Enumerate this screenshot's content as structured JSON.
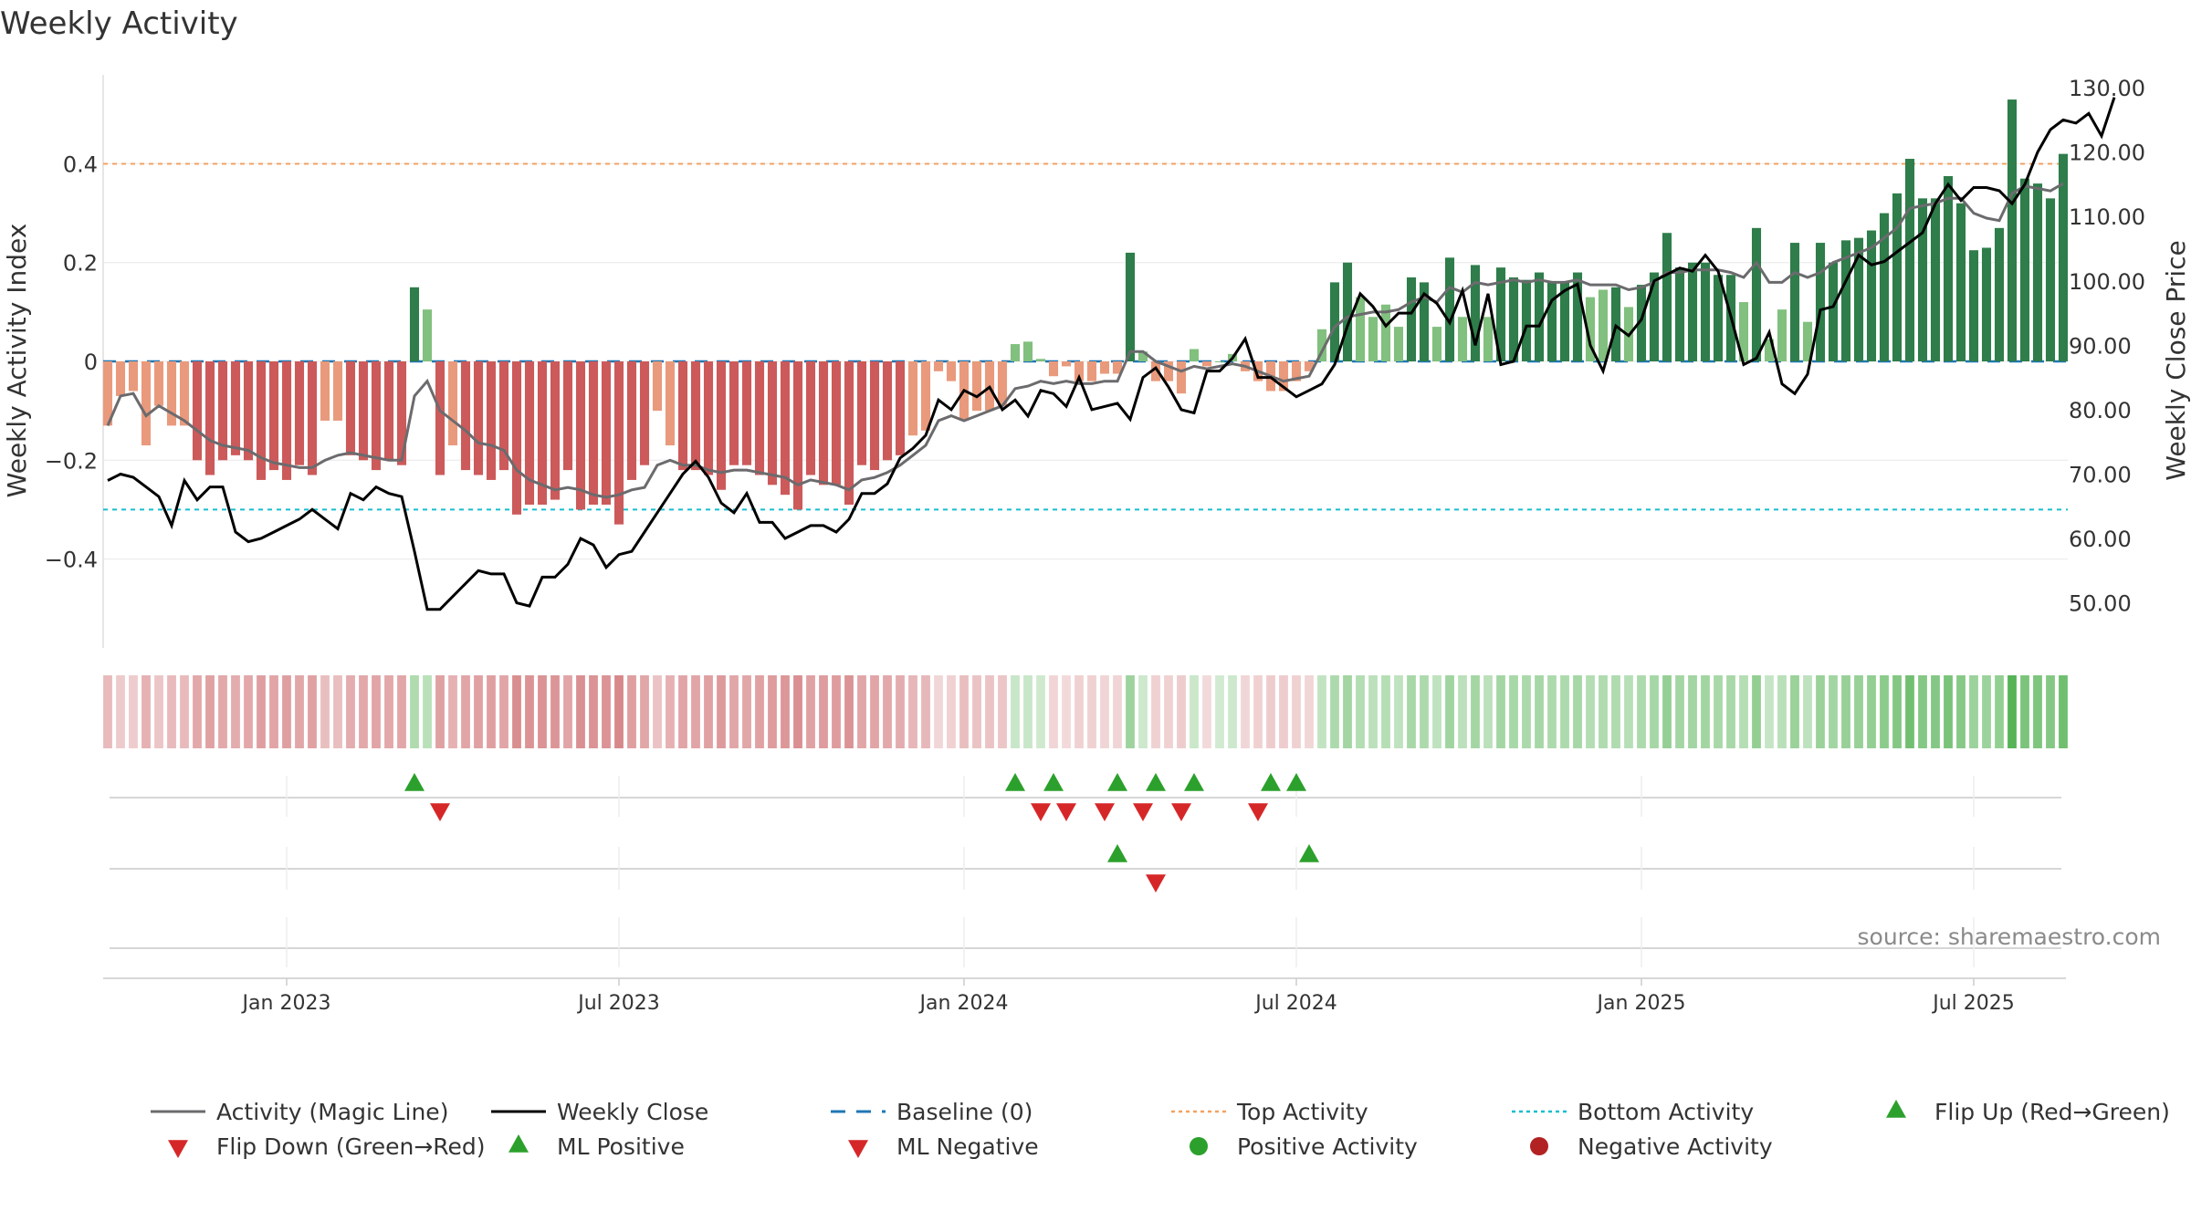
{
  "chart_data": {
    "type": "bar",
    "title": "Weekly Activity",
    "ylabel_left": "Weekly Activity Index",
    "ylabel_right": "Weekly Close Price",
    "ylim_left": [
      -0.58,
      0.58
    ],
    "ylim_right": [
      43.0,
      132.0
    ],
    "yticks_left": [
      {
        "value": 0.4,
        "label": "0.4"
      },
      {
        "value": 0.2,
        "label": "0.2"
      },
      {
        "value": 0.0,
        "label": "0"
      },
      {
        "value": -0.2,
        "label": "−0.2"
      },
      {
        "value": -0.4,
        "label": "−0.4"
      }
    ],
    "yticks_right": [
      {
        "value": 130,
        "label": "130.00"
      },
      {
        "value": 120,
        "label": "120.00"
      },
      {
        "value": 110,
        "label": "110.00"
      },
      {
        "value": 100,
        "label": "100.00"
      },
      {
        "value": 90,
        "label": "90.00"
      },
      {
        "value": 80,
        "label": "80.00"
      },
      {
        "value": 70,
        "label": "70.00"
      },
      {
        "value": 60,
        "label": "60.00"
      },
      {
        "value": 50,
        "label": "50.00"
      }
    ],
    "xticks": [
      {
        "index": 14,
        "label": "Jan 2023"
      },
      {
        "index": 40,
        "label": "Jul 2023"
      },
      {
        "index": 67,
        "label": "Jan 2024"
      },
      {
        "index": 93,
        "label": "Jul 2024"
      },
      {
        "index": 120,
        "label": "Jan 2025"
      },
      {
        "index": 146,
        "label": "Jul 2025"
      }
    ],
    "top_activity": 0.4,
    "bottom_activity": -0.3,
    "baseline": 0,
    "activity": [
      -0.13,
      -0.07,
      -0.06,
      -0.17,
      -0.09,
      -0.13,
      -0.13,
      -0.2,
      -0.23,
      -0.2,
      -0.19,
      -0.2,
      -0.24,
      -0.22,
      -0.24,
      -0.21,
      -0.23,
      -0.12,
      -0.12,
      -0.19,
      -0.2,
      -0.22,
      -0.2,
      -0.21,
      0.15,
      0.105,
      -0.23,
      -0.17,
      -0.22,
      -0.23,
      -0.24,
      -0.22,
      -0.31,
      -0.29,
      -0.29,
      -0.28,
      -0.22,
      -0.3,
      -0.29,
      -0.29,
      -0.33,
      -0.24,
      -0.21,
      -0.1,
      -0.17,
      -0.22,
      -0.22,
      -0.23,
      -0.26,
      -0.21,
      -0.21,
      -0.23,
      -0.25,
      -0.27,
      -0.3,
      -0.23,
      -0.25,
      -0.25,
      -0.29,
      -0.21,
      -0.22,
      -0.2,
      -0.19,
      -0.15,
      -0.14,
      -0.02,
      -0.04,
      -0.12,
      -0.1,
      -0.1,
      -0.09,
      0.035,
      0.04,
      0.005,
      -0.03,
      -0.01,
      -0.04,
      -0.04,
      -0.025,
      -0.025,
      0.22,
      0.02,
      -0.04,
      -0.04,
      -0.065,
      0.025,
      -0.01,
      0.0,
      0.015,
      -0.02,
      -0.04,
      -0.06,
      -0.06,
      -0.04,
      -0.02,
      0.065,
      0.16,
      0.2,
      0.13,
      0.09,
      0.115,
      0.07,
      0.17,
      0.16,
      0.07,
      0.21,
      0.09,
      0.195,
      0.09,
      0.19,
      0.17,
      0.165,
      0.18,
      0.16,
      0.16,
      0.18,
      0.13,
      0.145,
      0.15,
      0.11,
      0.155,
      0.18,
      0.26,
      0.19,
      0.2,
      0.2,
      0.175,
      0.175,
      0.12,
      0.27,
      0.045,
      0.105,
      0.24,
      0.08,
      0.24,
      0.2,
      0.245,
      0.25,
      0.265,
      0.3,
      0.34,
      0.41,
      0.33,
      0.33,
      0.375,
      0.32,
      0.225,
      0.23,
      0.27,
      0.53,
      0.37,
      0.36,
      0.33,
      0.42
    ],
    "magic_line": [
      -0.13,
      -0.07,
      -0.065,
      -0.11,
      -0.09,
      -0.105,
      -0.12,
      -0.14,
      -0.16,
      -0.17,
      -0.175,
      -0.18,
      -0.195,
      -0.205,
      -0.21,
      -0.215,
      -0.215,
      -0.2,
      -0.19,
      -0.185,
      -0.19,
      -0.195,
      -0.2,
      -0.2,
      -0.07,
      -0.04,
      -0.1,
      -0.12,
      -0.14,
      -0.165,
      -0.17,
      -0.18,
      -0.22,
      -0.24,
      -0.25,
      -0.26,
      -0.255,
      -0.26,
      -0.27,
      -0.275,
      -0.27,
      -0.26,
      -0.255,
      -0.21,
      -0.2,
      -0.21,
      -0.21,
      -0.22,
      -0.225,
      -0.22,
      -0.22,
      -0.225,
      -0.23,
      -0.235,
      -0.25,
      -0.24,
      -0.245,
      -0.25,
      -0.26,
      -0.24,
      -0.235,
      -0.225,
      -0.21,
      -0.19,
      -0.17,
      -0.12,
      -0.11,
      -0.12,
      -0.11,
      -0.1,
      -0.09,
      -0.055,
      -0.05,
      -0.04,
      -0.045,
      -0.04,
      -0.045,
      -0.045,
      -0.04,
      -0.04,
      0.02,
      0.02,
      0.0,
      -0.01,
      -0.02,
      -0.01,
      -0.015,
      -0.01,
      -0.005,
      -0.01,
      -0.02,
      -0.03,
      -0.04,
      -0.035,
      -0.03,
      0.02,
      0.07,
      0.09,
      0.095,
      0.1,
      0.1,
      0.105,
      0.12,
      0.13,
      0.12,
      0.15,
      0.14,
      0.16,
      0.155,
      0.16,
      0.165,
      0.16,
      0.165,
      0.16,
      0.16,
      0.165,
      0.155,
      0.155,
      0.155,
      0.145,
      0.15,
      0.16,
      0.18,
      0.18,
      0.185,
      0.185,
      0.185,
      0.18,
      0.17,
      0.2,
      0.16,
      0.16,
      0.18,
      0.17,
      0.18,
      0.2,
      0.21,
      0.22,
      0.23,
      0.25,
      0.27,
      0.31,
      0.315,
      0.32,
      0.33,
      0.33,
      0.3,
      0.29,
      0.285,
      0.34,
      0.355,
      0.35,
      0.345,
      0.36
    ],
    "weekly_close": [
      69.0,
      70.0,
      69.5,
      68.0,
      66.5,
      62.0,
      69.0,
      66.0,
      68.0,
      68.0,
      61.0,
      59.5,
      60.0,
      61.0,
      62.0,
      63.0,
      64.5,
      63.0,
      61.5,
      67.0,
      66.0,
      68.0,
      67.0,
      66.5,
      58.0,
      49.0,
      49.0,
      51.0,
      53.0,
      55.0,
      54.5,
      54.5,
      50.0,
      49.5,
      54.0,
      54.0,
      56.0,
      60.0,
      59.0,
      55.5,
      57.5,
      58.0,
      61.0,
      64.0,
      67.0,
      70.0,
      72.0,
      69.5,
      65.5,
      64.0,
      67.0,
      62.5,
      62.5,
      60.0,
      61.0,
      62.0,
      62.0,
      61.0,
      63.0,
      67.0,
      67.0,
      68.5,
      72.5,
      74.0,
      76.0,
      81.5,
      80.0,
      83.0,
      82.0,
      83.5,
      80.0,
      81.5,
      79.0,
      83.0,
      82.5,
      80.5,
      85.0,
      80.0,
      80.5,
      81.0,
      78.5,
      85.0,
      86.5,
      83.5,
      80.0,
      79.5,
      86.0,
      86.0,
      88.0,
      91.0,
      85.0,
      85.0,
      83.5,
      82.0,
      83.0,
      84.0,
      87.0,
      93.0,
      98.0,
      96.0,
      93.0,
      95.0,
      95.0,
      98.0,
      96.5,
      93.5,
      98.5,
      90.0,
      98.0,
      87.0,
      87.5,
      93.0,
      93.0,
      97.0,
      98.5,
      99.5,
      90.0,
      86.0,
      93.0,
      91.5,
      94.0,
      100.0,
      101.0,
      102.0,
      101.5,
      104.0,
      101.5,
      94.5,
      87.0,
      88.0,
      92.0,
      84.0,
      82.5,
      85.5,
      95.5,
      96.0,
      100.0,
      104.0,
      102.5,
      103.0,
      104.5,
      106.0,
      107.5,
      112.0,
      115.0,
      112.5,
      114.5,
      114.5,
      114.0,
      112.0,
      115.0,
      120.0,
      123.5,
      125.0,
      124.5,
      126.0,
      122.5,
      128.5
    ],
    "flip_up_indices": [
      24,
      71,
      74,
      79,
      82,
      85,
      91,
      93
    ],
    "flip_down_indices": [
      26,
      73,
      75,
      78,
      81,
      84,
      90
    ],
    "ml_positive_indices": [
      79,
      94
    ],
    "ml_negative_indices": [
      82
    ],
    "source_label": "source: sharemaestro.com",
    "legend": [
      {
        "label": "Activity (Magic Line)",
        "marker": "line",
        "color": "#6b6b6e"
      },
      {
        "label": "Weekly Close",
        "marker": "line",
        "color": "#000000"
      },
      {
        "label": "Baseline (0)",
        "marker": "dash",
        "color": "#1f77b4"
      },
      {
        "label": "Top Activity",
        "marker": "dot-line",
        "color": "#f4a261"
      },
      {
        "label": "Bottom Activity",
        "marker": "dot-line",
        "color": "#17becf"
      },
      {
        "label": "Flip Up (Red→Green)",
        "marker": "triangle-up",
        "color": "#2ca02c"
      },
      {
        "label": "Flip Down (Green→Red)",
        "marker": "triangle-down",
        "color": "#d62728"
      },
      {
        "label": "ML Positive",
        "marker": "triangle-up",
        "color": "#2ca02c"
      },
      {
        "label": "ML Negative",
        "marker": "triangle-down",
        "color": "#d62728"
      },
      {
        "label": "Positive Activity",
        "marker": "circle",
        "color": "#2ca02c"
      },
      {
        "label": "Negative Activity",
        "marker": "circle",
        "color": "#b22222"
      }
    ],
    "colors": {
      "strong_pos": "#2e7d4a",
      "weak_pos": "#81c07e",
      "strong_neg": "#cc5a5a",
      "weak_neg": "#e99a7c",
      "magic_line": "#6b6b6e",
      "close": "#000000",
      "baseline": "#1f77b4",
      "top": "#f4a261",
      "bottom": "#17becf",
      "flip_up": "#2ca02c",
      "flip_down": "#d62728"
    }
  }
}
